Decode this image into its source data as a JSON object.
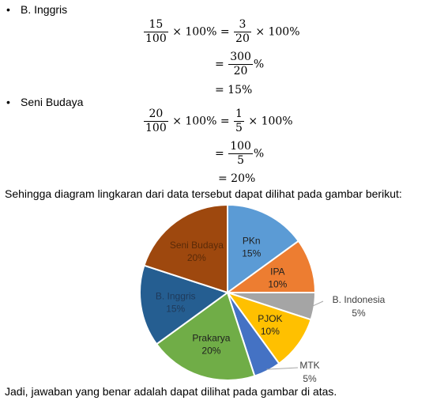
{
  "section1": {
    "bullet": "•",
    "title": "B. Inggris",
    "line1": {
      "n1": "15",
      "d1": "100",
      "mid": "× 100% =",
      "n2": "3",
      "d2": "20",
      "tail": "× 100%"
    },
    "line2": {
      "eq": "=",
      "n": "300",
      "d": "20",
      "tail": "%"
    },
    "line3": {
      "text": "= 15%"
    }
  },
  "section2": {
    "bullet": "•",
    "title": "Seni Budaya",
    "line1": {
      "n1": "20",
      "d1": "100",
      "mid": "× 100% =",
      "n2": "1",
      "d2": "5",
      "tail": "× 100%"
    },
    "line2": {
      "eq": "=",
      "n": "100",
      "d": "5",
      "tail": "%"
    },
    "line3": {
      "text": "= 20%"
    }
  },
  "intro_text": "Sehingga diagram lingkaran dari data tersebut dapat dilihat pada gambar berikut:",
  "closing_text": "Jadi, jawaban yang benar adalah dapat dilihat pada gambar di atas.",
  "chart_data": {
    "type": "pie",
    "start": "top, clockwise",
    "slices": [
      {
        "label": "PKn",
        "pct": "15%",
        "value": 15,
        "color": "#5B9BD5",
        "text_color": "#1f1f1f",
        "outside": false
      },
      {
        "label": "IPA",
        "pct": "10%",
        "value": 10,
        "color": "#ED7D31",
        "text_color": "#1f1f1f",
        "outside": false
      },
      {
        "label": "B. Indonesia",
        "pct": "5%",
        "value": 5,
        "color": "#A5A5A5",
        "text_color": "#404040",
        "outside": true
      },
      {
        "label": "PJOK",
        "pct": "10%",
        "value": 10,
        "color": "#FFC000",
        "text_color": "#1f1f1f",
        "outside": false
      },
      {
        "label": "MTK",
        "pct": "5%",
        "value": 5,
        "color": "#4472C4",
        "text_color": "#404040",
        "outside": true
      },
      {
        "label": "Prakarya",
        "pct": "20%",
        "value": 20,
        "color": "#70AD47",
        "text_color": "#1f1f1f",
        "outside": false
      },
      {
        "label": "B. Inggris",
        "pct": "15%",
        "value": 15,
        "color": "#255E91",
        "text_color": "#1f3a5a",
        "outside": false
      },
      {
        "label": "Seni Budaya",
        "pct": "20%",
        "value": 20,
        "color": "#9E480E",
        "text_color": "#5a2a08",
        "outside": false
      }
    ]
  }
}
